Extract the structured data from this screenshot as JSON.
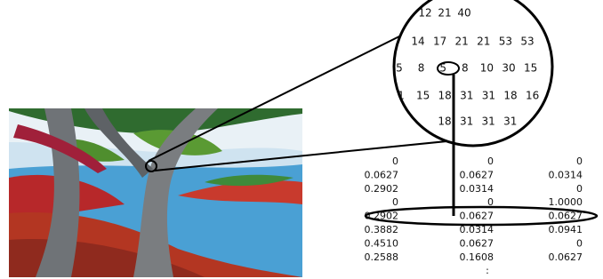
{
  "zoom": {
    "rows": [
      [
        "12",
        "21",
        "40"
      ],
      [
        "14",
        "17",
        "21",
        "21",
        "53",
        "53"
      ],
      [
        "5",
        "8",
        "5",
        "8",
        "10",
        "30",
        "15"
      ],
      [
        "1",
        "15",
        "18",
        "31",
        "31",
        "18",
        "16"
      ],
      [
        "18",
        "31",
        "31",
        "31"
      ]
    ]
  },
  "table": {
    "rows": [
      [
        "0",
        "0",
        "0"
      ],
      [
        "0.0627",
        "0.0627",
        "0.0314"
      ],
      [
        "0.2902",
        "0.0314",
        "0"
      ],
      [
        "0",
        "0",
        "1.0000"
      ],
      [
        "0.2902",
        "0.0627",
        "0.0627"
      ],
      [
        "0.3882",
        "0.0314",
        "0.0941"
      ],
      [
        "0.4510",
        "0.0627",
        "0"
      ],
      [
        "0.2588",
        "0.1608",
        "0.0627"
      ]
    ],
    "ellipsis": ":"
  }
}
